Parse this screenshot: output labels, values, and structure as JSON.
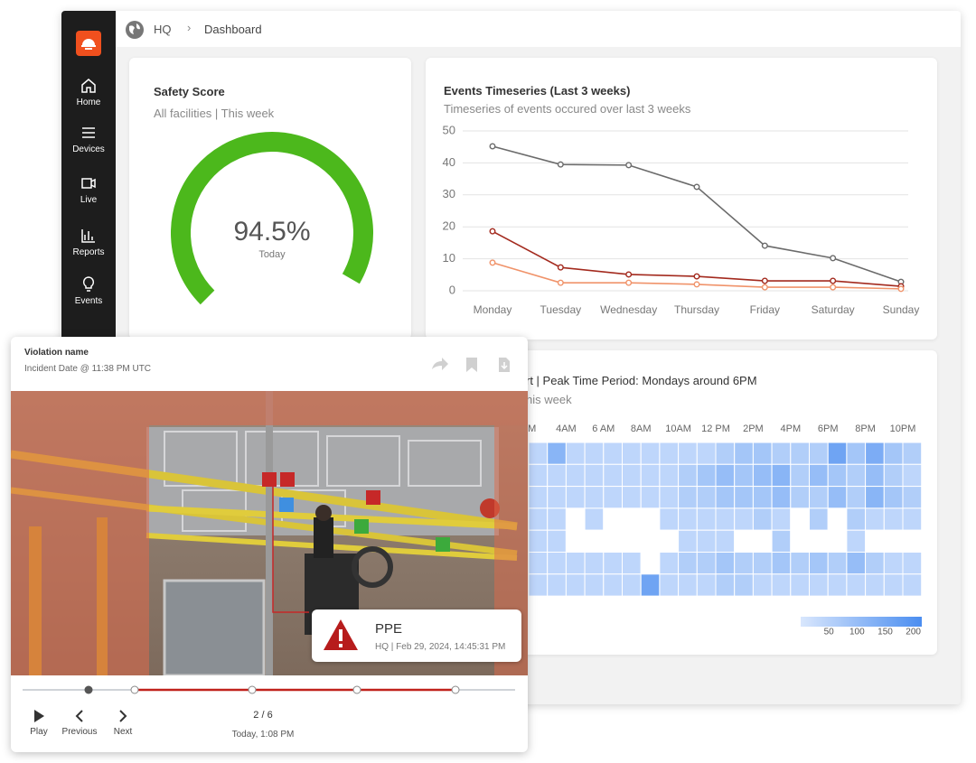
{
  "sidebar": {
    "items": [
      "Home",
      "Devices",
      "Live",
      "Reports",
      "Events"
    ]
  },
  "breadcrumb": [
    "HQ",
    "Dashboard"
  ],
  "safety_score": {
    "title": "Safety Score",
    "subtitle": "All facilities | This week",
    "value": 94.5,
    "value_label": "94.5%",
    "caption": "Today",
    "color": "#4cb81c"
  },
  "events_chart": {
    "type": "line",
    "title": "Events Timeseries (Last 3 weeks)",
    "subtitle": "Timeseries of events occured over last 3 weeks",
    "categories": [
      "Monday",
      "Tuesday",
      "Wednesday",
      "Thursday",
      "Friday",
      "Saturday",
      "Sunday"
    ],
    "series": [
      {
        "color": "#6b6b6b",
        "values": [
          45.2,
          39.5,
          39.3,
          32.5,
          14.1,
          10.2,
          2.8
        ]
      },
      {
        "color": "#a32a1e",
        "values": [
          18.6,
          7.3,
          5.1,
          4.5,
          3.1,
          3.1,
          1.4
        ]
      },
      {
        "color": "#f0936a",
        "values": [
          8.8,
          2.5,
          2.5,
          2.0,
          1.1,
          1.1,
          0.6
        ]
      }
    ],
    "ylim": [
      0,
      50
    ],
    "yticks": [
      0,
      10,
      20,
      30,
      40,
      50
    ],
    "grid": true
  },
  "heatmap": {
    "type": "heatmap",
    "title": "rt | Peak Time Period: Mondays around 6PM",
    "subtitle": "his week",
    "x_labels": [
      "AM",
      "4AM",
      "6 AM",
      "8AM",
      "10AM",
      "12 PM",
      "2PM",
      "4PM",
      "6PM",
      "8PM",
      "10PM"
    ],
    "values": [
      [
        40,
        120,
        40,
        40,
        40,
        40,
        40,
        40,
        40,
        40,
        60,
        80,
        80,
        60,
        60,
        60,
        160,
        80,
        140,
        80,
        60
      ],
      [
        40,
        40,
        40,
        40,
        40,
        40,
        40,
        40,
        60,
        80,
        100,
        80,
        100,
        120,
        60,
        100,
        80,
        60,
        100,
        60,
        40
      ],
      [
        40,
        40,
        40,
        40,
        40,
        40,
        40,
        40,
        60,
        60,
        80,
        80,
        80,
        100,
        60,
        60,
        100,
        60,
        120,
        80,
        60
      ],
      [
        40,
        40,
        0,
        40,
        0,
        0,
        0,
        40,
        40,
        40,
        40,
        40,
        60,
        40,
        0,
        60,
        0,
        60,
        40,
        40,
        40
      ],
      [
        40,
        40,
        0,
        0,
        0,
        0,
        0,
        0,
        40,
        40,
        40,
        0,
        0,
        60,
        0,
        0,
        0,
        40,
        0,
        0,
        0
      ],
      [
        40,
        40,
        40,
        40,
        40,
        40,
        0,
        40,
        60,
        60,
        80,
        60,
        60,
        80,
        60,
        80,
        60,
        100,
        60,
        40,
        40
      ],
      [
        40,
        40,
        40,
        40,
        40,
        40,
        160,
        40,
        40,
        40,
        60,
        60,
        40,
        40,
        40,
        40,
        40,
        40,
        40,
        40,
        40
      ]
    ],
    "clim": [
      0,
      215
    ],
    "colors": [
      "#d9e7fd",
      "#4a8df0"
    ],
    "colorbar_ticks": [
      50,
      100,
      150,
      200
    ]
  },
  "incident": {
    "title": "Violation name",
    "date": "Incident Date @ 11:38 PM UTC",
    "alert": {
      "label": "PPE",
      "detail": "HQ | Feb 29, 2024, 14:45:31 PM"
    },
    "controls": [
      "Play",
      "Previous",
      "Next"
    ],
    "position": "2 / 6",
    "time": "Today, 1:08 PM"
  }
}
